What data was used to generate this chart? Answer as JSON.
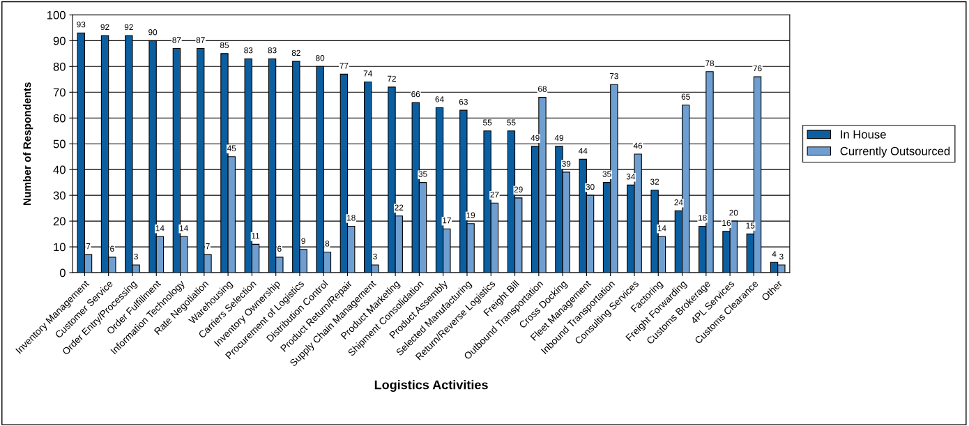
{
  "chart_data": {
    "type": "bar",
    "xlabel": "Logistics Activities",
    "ylabel": "Number of Respondents",
    "categories": [
      "Inventory Management",
      "Customer Service",
      "Order Entry/Processing",
      "Order Fulfillment",
      "Information Technology",
      "Rate Negotiation",
      "Warehousing",
      "Carriers Selection",
      "Inventory Ownership",
      "Procurement of Logistics",
      "Distribution Control",
      "Product Return/Repair",
      "Supply Chain Management",
      "Product Marketing",
      "Shipment Consolidation",
      "Product Assembly",
      "Selected Manufacturing",
      "Return/Reverse Logistics",
      "Freight Bill",
      "Outbound Transportation",
      "Cross Docking",
      "Fleet Management",
      "Inbound Transportation",
      "Consulting Services",
      "Factoring",
      "Freight Forwarding",
      "Customs Brokerage",
      "4PL Services",
      "Customs Clearance",
      "Other"
    ],
    "series": [
      {
        "name": "In House",
        "color": "#0b5fa0",
        "values": [
          93,
          92,
          92,
          90,
          87,
          87,
          85,
          83,
          83,
          82,
          80,
          77,
          74,
          72,
          66,
          64,
          63,
          55,
          55,
          49,
          49,
          44,
          35,
          34,
          32,
          24,
          18,
          16,
          15,
          4
        ]
      },
      {
        "name": "Currently Outsourced",
        "color": "#6f9fd0",
        "values": [
          7,
          6,
          3,
          14,
          14,
          7,
          45,
          11,
          6,
          9,
          8,
          18,
          3,
          22,
          35,
          17,
          19,
          27,
          29,
          68,
          39,
          30,
          73,
          46,
          14,
          65,
          78,
          20,
          76,
          3
        ]
      }
    ],
    "ylim": [
      0,
      100
    ],
    "yticks": [
      0,
      10,
      20,
      30,
      40,
      50,
      60,
      70,
      80,
      90,
      100
    ],
    "grid": "y",
    "legend": "right",
    "data_labels": true
  }
}
